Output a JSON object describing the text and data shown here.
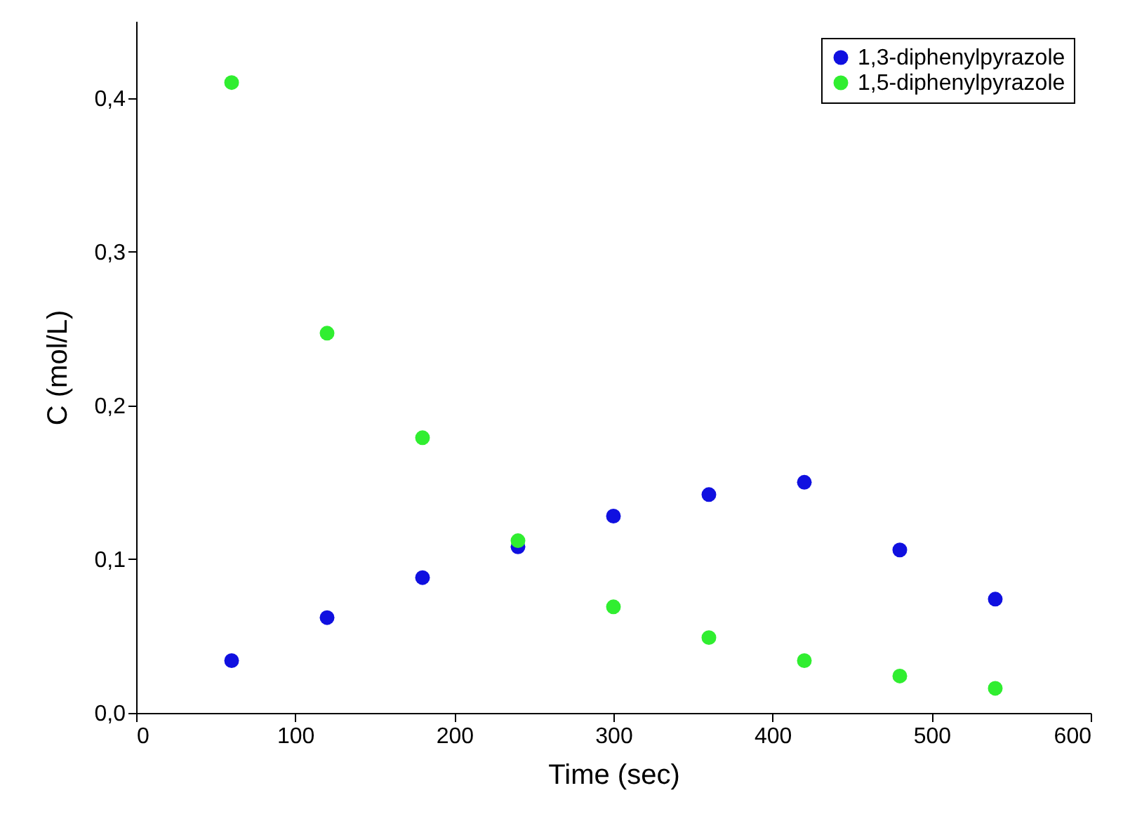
{
  "chart_data": {
    "type": "scatter",
    "xlabel": "Time (sec)",
    "ylabel": "C (mol/L)",
    "x": [
      60,
      120,
      180,
      240,
      300,
      360,
      420,
      480,
      540
    ],
    "series": [
      {
        "name": "1,3-diphenylpyrazole",
        "color": "#1010e0",
        "values": [
          0.034,
          0.062,
          0.088,
          0.108,
          0.128,
          0.142,
          0.15,
          0.106,
          0.074
        ]
      },
      {
        "name": "1,5-diphenylpyrazole",
        "color": "#30ee30",
        "values": [
          0.41,
          0.247,
          0.179,
          0.112,
          0.069,
          0.049,
          0.034,
          0.024,
          0.016
        ]
      }
    ],
    "xlim": [
      0,
      600
    ],
    "xticks": [
      0,
      100,
      200,
      300,
      400,
      500,
      600
    ],
    "ylim": [
      0,
      0.45
    ],
    "yticks": [
      {
        "value": 0,
        "label": "0,0"
      },
      {
        "value": 0.1,
        "label": "0,1"
      },
      {
        "value": 0.2,
        "label": "0,2"
      },
      {
        "value": 0.3,
        "label": "0,3"
      },
      {
        "value": 0.4,
        "label": "0,4"
      }
    ],
    "grid": false,
    "legend": "top right",
    "marker": "circle"
  }
}
